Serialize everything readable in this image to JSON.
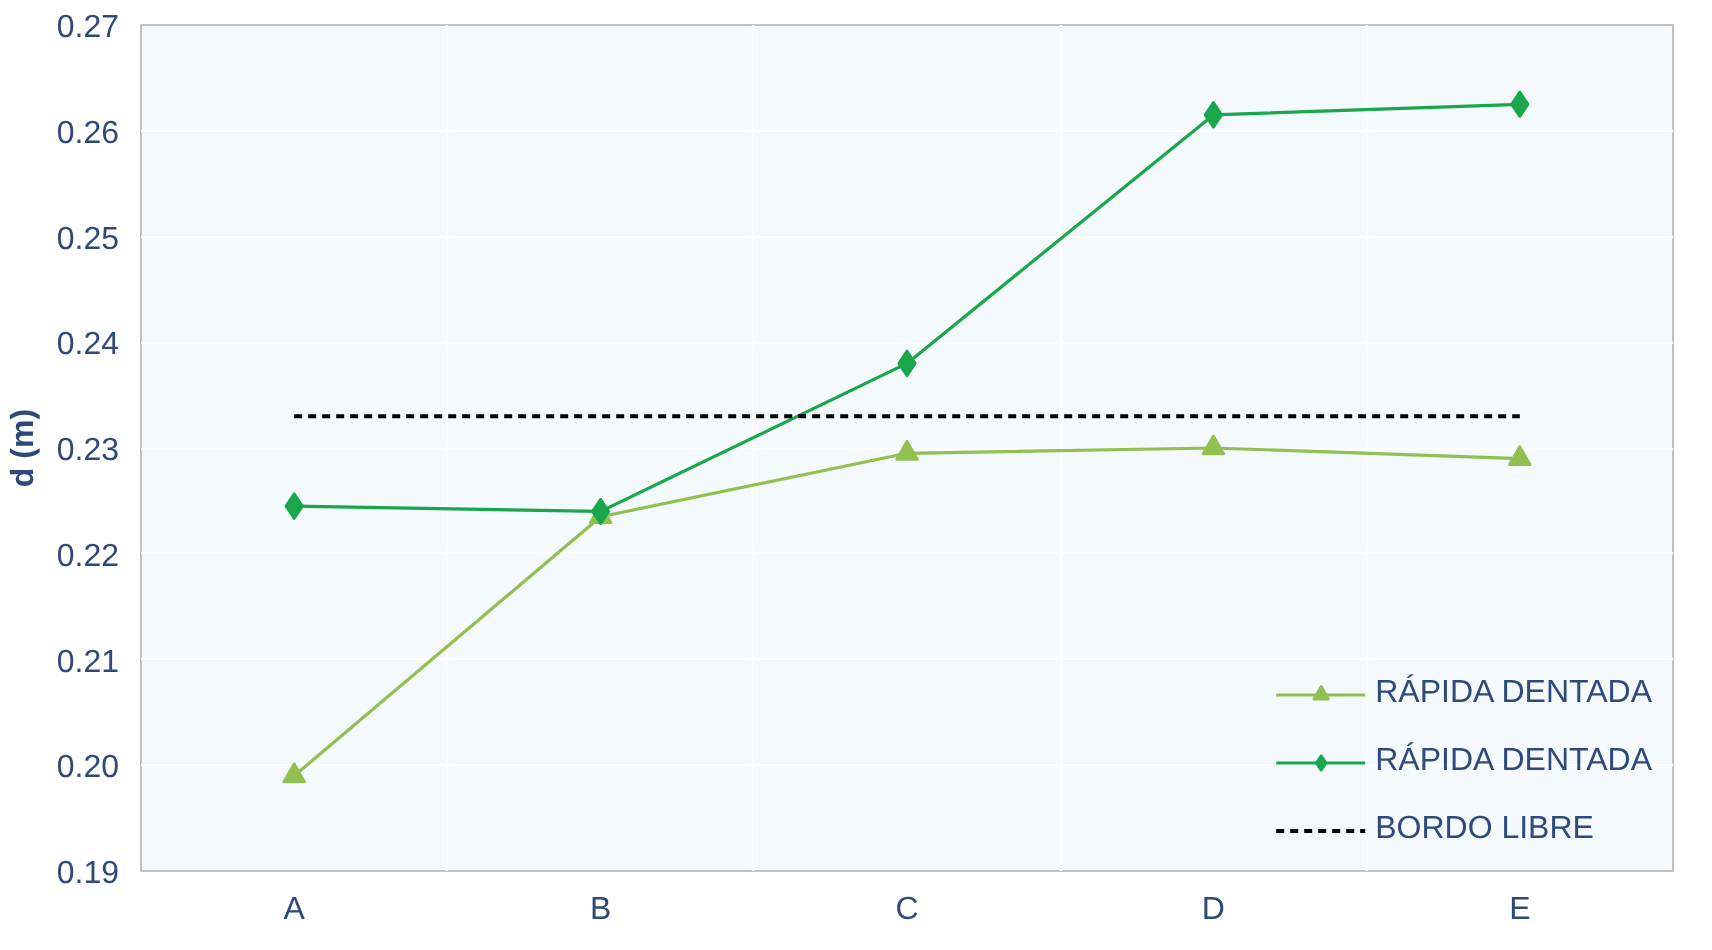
{
  "chart_data": {
    "type": "line",
    "ylabel": "d (m)",
    "categories": [
      "A",
      "B",
      "C",
      "D",
      "E"
    ],
    "series": [
      {
        "name": "RÁPIDA DENTADA",
        "color": "#92c050",
        "marker": "triangle",
        "values": [
          0.199,
          0.2235,
          0.2295,
          0.23,
          0.229
        ]
      },
      {
        "name": "RÁPIDA DENTADA",
        "color": "#1aa64a",
        "marker": "diamond",
        "values": [
          0.2245,
          0.224,
          0.238,
          0.2615,
          0.2625
        ]
      },
      {
        "name": "BORDO LIBRE",
        "color": "#000000",
        "marker": "none",
        "line_style": "dashed",
        "values": [
          0.233,
          0.233,
          0.233,
          0.233,
          0.233
        ]
      }
    ],
    "ylim": [
      0.19,
      0.27
    ],
    "yticks": [
      {
        "value": 0.19,
        "label": "0.19"
      },
      {
        "value": 0.2,
        "label": "0.20"
      },
      {
        "value": 0.21,
        "label": "0.21"
      },
      {
        "value": 0.22,
        "label": "0.22"
      },
      {
        "value": 0.23,
        "label": "0.23"
      },
      {
        "value": 0.24,
        "label": "0.24"
      },
      {
        "value": 0.25,
        "label": "0.25"
      },
      {
        "value": 0.26,
        "label": "0.26"
      },
      {
        "value": 0.27,
        "label": "0.27"
      }
    ],
    "grid": true,
    "legend": "bottom right"
  }
}
